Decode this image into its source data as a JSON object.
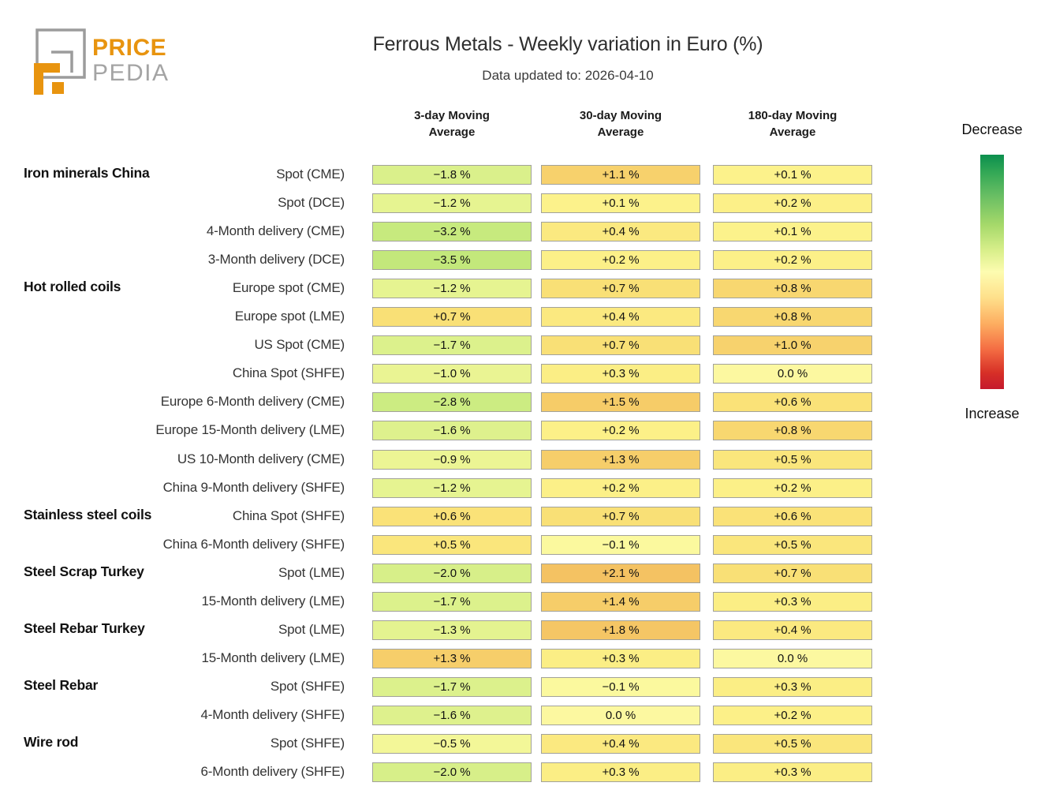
{
  "logo": {
    "line1": "PRICE",
    "line2": "PEDIA",
    "orange": "#e8940f",
    "gray": "#a4a4a4"
  },
  "header": {
    "title": "Ferrous Metals - Weekly variation in Euro (%)",
    "subtitle": "Data updated to: 2026-04-10"
  },
  "legend": {
    "top_label": "Decrease",
    "bottom_label": "Increase"
  },
  "chart_data": {
    "type": "heatmap",
    "title": "Ferrous Metals - Weekly variation in Euro (%)",
    "subtitle": "Data updated to: 2026-04-10",
    "unit": "%",
    "columns": [
      "3-day Moving Average",
      "30-day Moving Average",
      "180-day Moving Average"
    ],
    "legend": {
      "top": "Decrease",
      "bottom": "Increase"
    },
    "rows": [
      {
        "group": "Iron minerals China",
        "label": "Spot (CME)",
        "values": [
          -1.8,
          1.1,
          0.1
        ]
      },
      {
        "group": "",
        "label": "Spot (DCE)",
        "values": [
          -1.2,
          0.1,
          0.2
        ]
      },
      {
        "group": "",
        "label": "4-Month delivery (CME)",
        "values": [
          -3.2,
          0.4,
          0.1
        ]
      },
      {
        "group": "",
        "label": "3-Month delivery (DCE)",
        "values": [
          -3.5,
          0.2,
          0.2
        ]
      },
      {
        "group": "Hot rolled coils",
        "label": "Europe spot (CME)",
        "values": [
          -1.2,
          0.7,
          0.8
        ]
      },
      {
        "group": "",
        "label": "Europe spot (LME)",
        "values": [
          0.7,
          0.4,
          0.8
        ]
      },
      {
        "group": "",
        "label": "US Spot (CME)",
        "values": [
          -1.7,
          0.7,
          1.0
        ]
      },
      {
        "group": "",
        "label": "China Spot (SHFE)",
        "values": [
          -1.0,
          0.3,
          0.0
        ]
      },
      {
        "group": "",
        "label": "Europe 6-Month delivery (CME)",
        "values": [
          -2.8,
          1.5,
          0.6
        ]
      },
      {
        "group": "",
        "label": "Europe 15-Month delivery (LME)",
        "values": [
          -1.6,
          0.2,
          0.8
        ]
      },
      {
        "group": "",
        "label": "US 10-Month delivery (CME)",
        "values": [
          -0.9,
          1.3,
          0.5
        ]
      },
      {
        "group": "",
        "label": "China 9-Month delivery (SHFE)",
        "values": [
          -1.2,
          0.2,
          0.2
        ]
      },
      {
        "group": "Stainless steel coils",
        "label": "China Spot (SHFE)",
        "values": [
          0.6,
          0.7,
          0.6
        ]
      },
      {
        "group": "",
        "label": "China 6-Month delivery (SHFE)",
        "values": [
          0.5,
          -0.1,
          0.5
        ]
      },
      {
        "group": "Steel Scrap Turkey",
        "label": "Spot (LME)",
        "values": [
          -2.0,
          2.1,
          0.7
        ]
      },
      {
        "group": "",
        "label": "15-Month delivery (LME)",
        "values": [
          -1.7,
          1.4,
          0.3
        ]
      },
      {
        "group": "Steel Rebar Turkey",
        "label": "Spot (LME)",
        "values": [
          -1.3,
          1.8,
          0.4
        ]
      },
      {
        "group": "",
        "label": "15-Month delivery (LME)",
        "values": [
          1.3,
          0.3,
          0.0
        ]
      },
      {
        "group": "Steel Rebar",
        "label": "Spot (SHFE)",
        "values": [
          -1.7,
          -0.1,
          0.3
        ]
      },
      {
        "group": "",
        "label": "4-Month delivery (SHFE)",
        "values": [
          -1.6,
          0.0,
          0.2
        ]
      },
      {
        "group": "Wire rod",
        "label": "Spot (SHFE)",
        "values": [
          -0.5,
          0.4,
          0.5
        ]
      },
      {
        "group": "",
        "label": "6-Month delivery (SHFE)",
        "values": [
          -2.0,
          0.3,
          0.3
        ]
      }
    ],
    "color_scale": {
      "-3.5": "#c3e87b",
      "-3.2": "#c7ea7e",
      "-2.8": "#ccec82",
      "-2.0": "#d7ef89",
      "-1.8": "#daf08b",
      "-1.7": "#dcf18c",
      "-1.6": "#def18d",
      "-1.3": "#e4f390",
      "-1.2": "#e6f491",
      "-1.0": "#eaf493",
      "-0.9": "#ecf594",
      "-0.5": "#f3f798",
      "-0.1": "#fbf99e",
      "0.0": "#fcf8a0",
      "0.1": "#fcf28b",
      "0.2": "#fcf088",
      "0.3": "#fbee85",
      "0.4": "#fbe980",
      "0.5": "#fae67c",
      "0.6": "#fae278",
      "0.7": "#f9e076",
      "0.8": "#f8d770",
      "1.0": "#f7d26d",
      "1.1": "#f7d16c",
      "1.3": "#f6ce6a",
      "1.4": "#f6cd69",
      "1.5": "#f6cc68",
      "1.8": "#f5c665",
      "2.1": "#f4c262"
    }
  }
}
